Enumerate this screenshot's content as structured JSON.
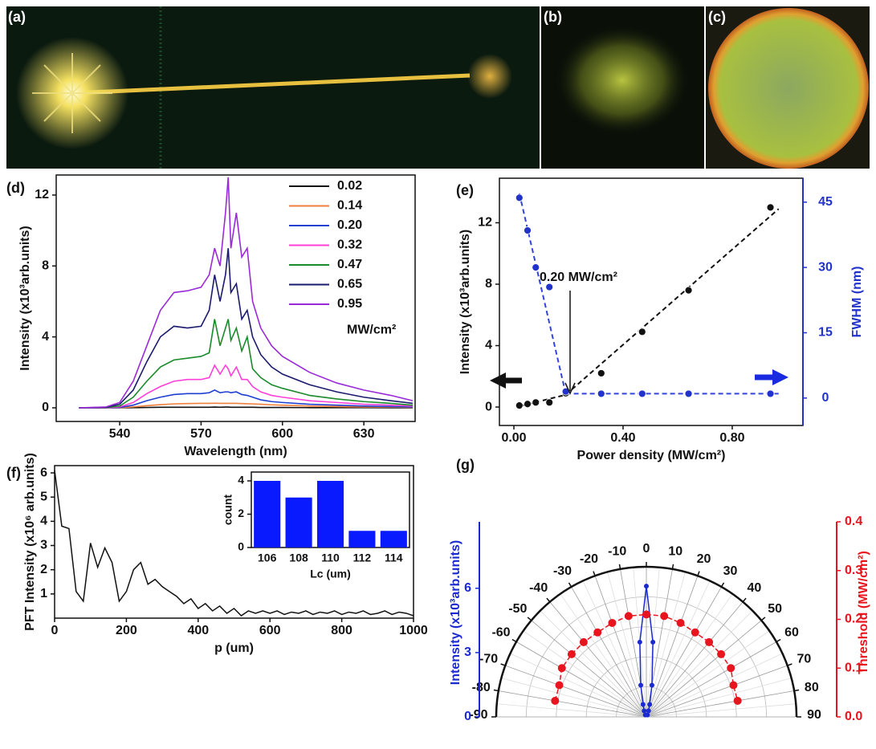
{
  "images": [
    {
      "label": "(a)"
    },
    {
      "label": "(b)"
    },
    {
      "label": "(c)"
    }
  ],
  "chart_data": [
    {
      "type": "line",
      "label": "(d)",
      "x_label": "Wavelength (nm)",
      "y_label": "Intensity (x10³arb.units)",
      "legend_title": "MW/cm²",
      "x": [
        525,
        535,
        540,
        545,
        550,
        555,
        560,
        565,
        570,
        573,
        575,
        577,
        579,
        580,
        581,
        583,
        585,
        587,
        589,
        592,
        596,
        600,
        610,
        620,
        630,
        640,
        648
      ],
      "series": [
        {
          "name": "0.02",
          "color": "#111111",
          "values": [
            0,
            0,
            0,
            0.01,
            0.02,
            0.03,
            0.03,
            0.03,
            0.03,
            0.03,
            0.04,
            0.03,
            0.04,
            0.04,
            0.03,
            0.03,
            0.03,
            0.03,
            0.03,
            0.02,
            0.02,
            0.02,
            0.01,
            0.01,
            0.01,
            0,
            0
          ]
        },
        {
          "name": "0.14",
          "color": "#f07f3c",
          "values": [
            0,
            0,
            0.01,
            0.05,
            0.12,
            0.18,
            0.22,
            0.24,
            0.25,
            0.25,
            0.26,
            0.25,
            0.25,
            0.25,
            0.25,
            0.25,
            0.24,
            0.23,
            0.22,
            0.2,
            0.17,
            0.15,
            0.1,
            0.07,
            0.05,
            0.04,
            0.03
          ]
        },
        {
          "name": "0.20",
          "color": "#1f3fd0",
          "values": [
            0,
            0,
            0.02,
            0.15,
            0.4,
            0.6,
            0.75,
            0.8,
            0.8,
            0.85,
            1.0,
            0.85,
            0.9,
            0.9,
            0.85,
            0.9,
            0.75,
            0.7,
            0.6,
            0.45,
            0.35,
            0.3,
            0.2,
            0.15,
            0.1,
            0.07,
            0.05
          ]
        },
        {
          "name": "0.32",
          "color": "#ff3fd8",
          "values": [
            0,
            0.01,
            0.05,
            0.3,
            0.8,
            1.2,
            1.5,
            1.6,
            1.6,
            1.7,
            2.4,
            1.9,
            2.4,
            2.2,
            1.8,
            2.3,
            1.6,
            1.6,
            1.2,
            0.9,
            0.7,
            0.6,
            0.4,
            0.3,
            0.2,
            0.15,
            0.1
          ]
        },
        {
          "name": "0.47",
          "color": "#1a8a2a",
          "values": [
            0,
            0.02,
            0.1,
            0.6,
            1.5,
            2.3,
            2.7,
            2.8,
            2.9,
            3.1,
            5,
            3.5,
            4.5,
            5,
            3.8,
            4.5,
            3.2,
            4,
            2.2,
            1.7,
            1.3,
            1.1,
            0.7,
            0.5,
            0.35,
            0.25,
            0.15
          ]
        },
        {
          "name": "0.65",
          "color": "#1a1a6e",
          "values": [
            0,
            0.03,
            0.2,
            1.0,
            2.6,
            4.0,
            4.6,
            4.5,
            4.6,
            5.5,
            7.5,
            6,
            7.5,
            9,
            6.5,
            7,
            5,
            5.5,
            4,
            3,
            2.3,
            1.9,
            1.3,
            0.9,
            0.6,
            0.4,
            0.25
          ]
        },
        {
          "name": "0.95",
          "color": "#9a2ad8",
          "values": [
            0,
            0.05,
            0.3,
            1.5,
            3.5,
            5.5,
            6.5,
            6.6,
            6.8,
            7.5,
            9,
            8,
            11,
            13,
            9,
            11,
            8.5,
            9,
            6,
            4.5,
            3.5,
            2.9,
            2,
            1.4,
            1,
            0.7,
            0.4
          ]
        }
      ],
      "xlim": [
        516.6,
        648.9
      ],
      "ylim": [
        -0.77,
        13.13
      ],
      "xticks": [
        540,
        570,
        600,
        630
      ],
      "yticks": [
        0,
        4,
        8,
        12
      ]
    },
    {
      "type": "scatter",
      "label": "(e)",
      "x_label": "Power density (MW/cm²)",
      "y_label": "Intensity (x10³arb.units)",
      "y2_label": "FWHM (nm)",
      "annotation": "0.20 MW/cm²",
      "x": [
        0.02,
        0.05,
        0.08,
        0.13,
        0.19,
        0.32,
        0.47,
        0.64,
        0.94
      ],
      "series": [
        {
          "color": "#111111",
          "values": [
            0.1,
            0.2,
            0.3,
            0.3,
            0.9,
            2.2,
            4.9,
            7.6,
            13.0
          ]
        },
        {
          "color": "#2233cc",
          "axis": "y2",
          "values": [
            46,
            38.5,
            30,
            25.5,
            1.5,
            1,
            1,
            1,
            1
          ]
        }
      ],
      "fits": [
        {
          "color": "#111111",
          "x": [
            0.02,
            0.19
          ],
          "values": [
            0.05,
            0.8
          ]
        },
        {
          "color": "#111111",
          "x": [
            0.19,
            0.97
          ],
          "values": [
            0.8,
            12.9
          ]
        },
        {
          "color": "#3344dd",
          "axis": "y2",
          "x": [
            0.02,
            0.19
          ],
          "values": [
            47,
            1
          ]
        },
        {
          "color": "#3344dd",
          "axis": "y2",
          "x": [
            0.19,
            0.97
          ],
          "values": [
            1,
            1
          ]
        }
      ],
      "xlim": [
        -0.053,
        1.059
      ],
      "ylim": [
        -1.2,
        14.9
      ],
      "y2lim": [
        -6.3,
        50.5
      ],
      "xticks": [
        {
          "value": 0,
          "label": "0.00"
        },
        {
          "value": 0.4,
          "label": "0.40"
        },
        {
          "value": 0.8,
          "label": "0.80"
        }
      ],
      "yticks": [
        0,
        4,
        8,
        12
      ],
      "y2ticks": [
        0,
        15,
        30,
        45
      ]
    },
    {
      "type": "line",
      "label": "(f)",
      "x_label": "p (um)",
      "y_label": "PFT Intensity (x10⁶ arb.units)",
      "color": "#111111",
      "x": [
        0,
        20,
        40,
        60,
        80,
        100,
        120,
        140,
        160,
        180,
        200,
        220,
        240,
        260,
        280,
        300,
        320,
        340,
        360,
        380,
        400,
        420,
        440,
        460,
        480,
        500,
        520,
        540,
        560,
        580,
        600,
        620,
        640,
        660,
        680,
        700,
        720,
        740,
        760,
        780,
        800,
        820,
        840,
        860,
        880,
        900,
        920,
        940,
        960,
        980,
        1000
      ],
      "values": [
        6.1,
        3.8,
        3.7,
        1.1,
        0.7,
        3.1,
        2.1,
        2.9,
        2.3,
        0.7,
        1.1,
        2.0,
        2.3,
        1.4,
        1.6,
        1.3,
        1.1,
        0.9,
        0.6,
        0.8,
        0.4,
        0.6,
        0.3,
        0.5,
        0.2,
        0.4,
        0.1,
        0.3,
        0.2,
        0.3,
        0.2,
        0.3,
        0.15,
        0.25,
        0.2,
        0.3,
        0.15,
        0.25,
        0.2,
        0.3,
        0.15,
        0.25,
        0.2,
        0.3,
        0.15,
        0.2,
        0.3,
        0.15,
        0.25,
        0.2,
        0.1
      ],
      "xlim": [
        0,
        1000
      ],
      "ylim": [
        0,
        6.3
      ],
      "xticks": [
        0,
        200,
        400,
        600,
        800,
        1000
      ],
      "yticks": [
        1,
        2,
        3,
        4,
        5,
        6
      ]
    },
    {
      "type": "bar",
      "x_label": "Lc (um)",
      "y_label": "count",
      "color": "#0a1aff",
      "categories": [
        "106",
        "108",
        "110",
        "112",
        "114"
      ],
      "values": [
        4,
        3,
        4,
        1,
        1
      ],
      "ylim": [
        0,
        4.53
      ],
      "yticks": [
        0,
        2,
        4
      ]
    },
    {
      "type": "polar",
      "label": "(g)",
      "y_label": "Intensity (x10³arb.units)",
      "y2_label": "Threshold (MW/cm²)",
      "theta_ticks": [
        -90,
        -80,
        -70,
        -60,
        -50,
        -40,
        -30,
        -20,
        -10,
        0,
        10,
        20,
        30,
        40,
        50,
        60,
        70,
        80,
        90
      ],
      "series": [
        {
          "color": "#1a2ad0",
          "theta": [
            -30,
            -20,
            -15,
            -10,
            -5,
            0,
            5,
            10,
            15,
            20,
            30
          ],
          "values": [
            0.1,
            0.3,
            0.6,
            1.5,
            3.5,
            6.1,
            3.5,
            1.5,
            0.6,
            0.3,
            0.1
          ]
        },
        {
          "color": "#e8141e",
          "axis": "y2",
          "theta": [
            -80,
            -70,
            -60,
            -50,
            -40,
            -30,
            -20,
            -10,
            0,
            10,
            20,
            30,
            40,
            50,
            60,
            70,
            80
          ],
          "values": [
            0.19,
            0.19,
            0.2,
            0.2,
            0.2,
            0.2,
            0.205,
            0.21,
            0.21,
            0.21,
            0.205,
            0.2,
            0.2,
            0.2,
            0.2,
            0.19,
            0.19
          ]
        }
      ],
      "ylim": [
        0,
        9.1
      ],
      "yticks": [
        0,
        3,
        6
      ],
      "y2lim": [
        0,
        0.4
      ],
      "y2ticks": [
        {
          "value": 0,
          "label": "0.0"
        },
        {
          "value": 0.1,
          "label": "0.1"
        },
        {
          "value": 0.2,
          "label": "0.2"
        },
        {
          "value": 0.3,
          "label": "0.3"
        },
        {
          "value": 0.4,
          "label": "0.4"
        }
      ]
    }
  ]
}
